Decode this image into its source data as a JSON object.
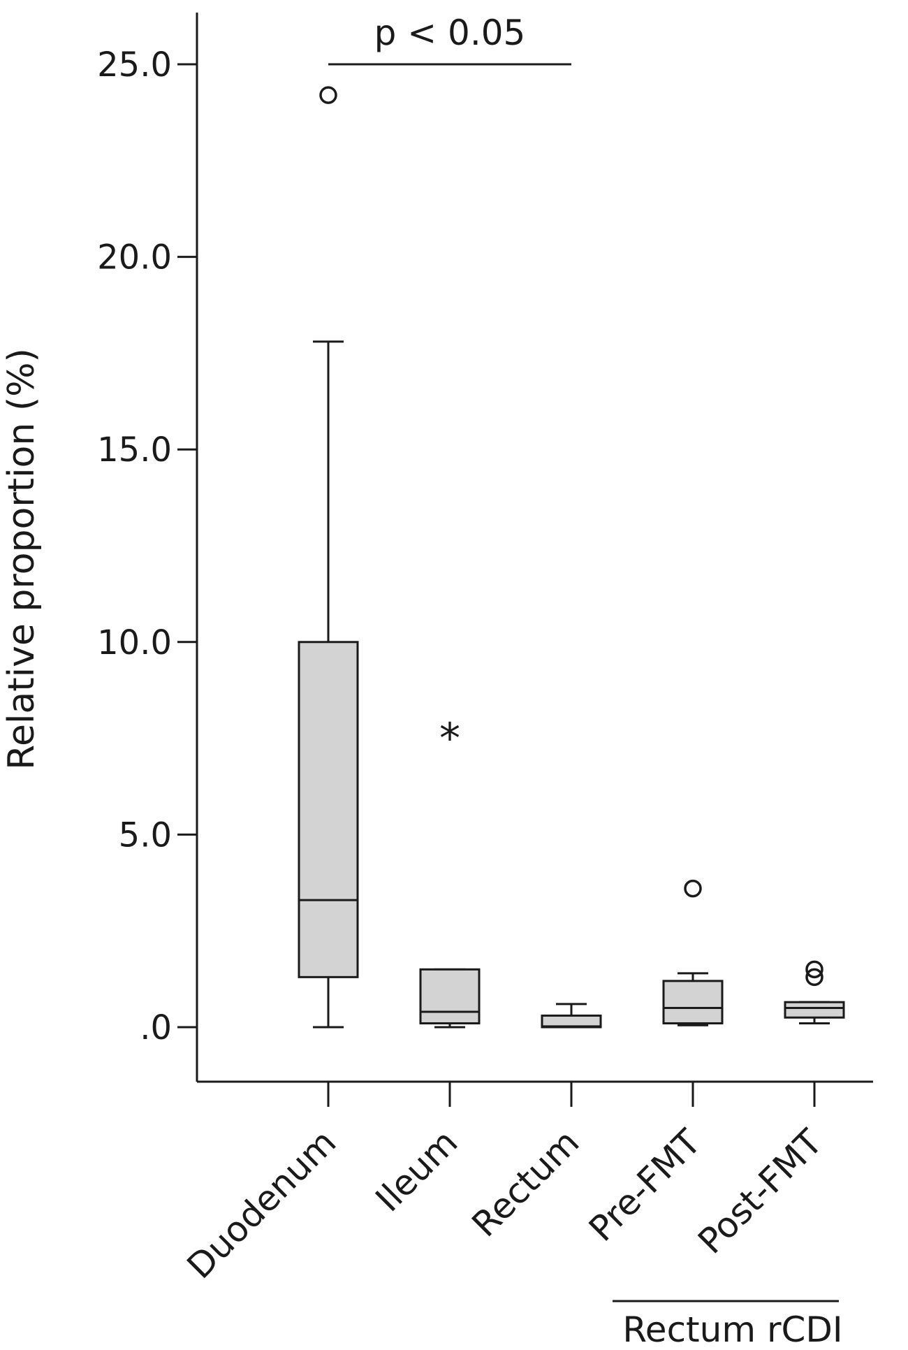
{
  "chart_data": {
    "type": "box",
    "ylabel": "Relative proportion (%)",
    "xlabel": "",
    "ylim": [
      -1.4,
      26.5
    ],
    "yticks": [
      0,
      5,
      10,
      15,
      20,
      25
    ],
    "ytick_labels": [
      ".0",
      "5.0",
      "10.0",
      "15.0",
      "20.0",
      "25.0"
    ],
    "categories": [
      "Duodenum",
      "Ileum",
      "Rectum",
      "Pre-FMT",
      "Post-FMT"
    ],
    "boxes": [
      {
        "category": "Duodenum",
        "whisker_low": 0.0,
        "q1": 1.3,
        "median": 3.3,
        "q3": 10.0,
        "whisker_high": 17.8,
        "outliers": [
          24.2
        ],
        "extremes": []
      },
      {
        "category": "Ileum",
        "whisker_low": 0.0,
        "q1": 0.1,
        "median": 0.4,
        "q3": 1.5,
        "whisker_high": 1.5,
        "outliers": [],
        "extremes": [
          7.6
        ]
      },
      {
        "category": "Rectum",
        "whisker_low": 0.0,
        "q1": 0.0,
        "median": 0.02,
        "q3": 0.3,
        "whisker_high": 0.6,
        "outliers": [],
        "extremes": []
      },
      {
        "category": "Pre-FMT",
        "whisker_low": 0.05,
        "q1": 0.1,
        "median": 0.5,
        "q3": 1.2,
        "whisker_high": 1.4,
        "outliers": [
          3.6
        ],
        "extremes": []
      },
      {
        "category": "Post-FMT",
        "whisker_low": 0.1,
        "q1": 0.25,
        "median": 0.5,
        "q3": 0.65,
        "whisker_high": 0.65,
        "outliers": [
          1.3,
          1.5
        ],
        "extremes": []
      }
    ],
    "annotations": [
      {
        "text": "p < 0.05",
        "from": "Duodenum",
        "to": "Rectum",
        "y": 25.0
      }
    ],
    "group_brackets": [
      {
        "text": "Rectum rCDI",
        "from": "Pre-FMT",
        "to": "Post-FMT"
      }
    ],
    "grid": false,
    "legend": "none",
    "colors": {
      "box_fill": "#d3d3d3",
      "stroke": "#1a1a1a"
    }
  }
}
